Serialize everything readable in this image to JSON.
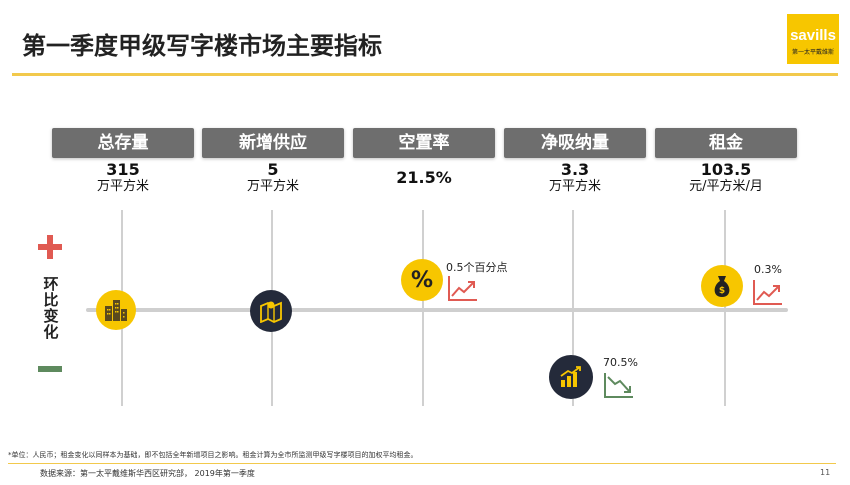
{
  "title": "第一季度甲级写字楼市场主要指标",
  "logo": {
    "brand": "savills",
    "sub": "第一太平戴维斯"
  },
  "metrics": [
    {
      "label": "总存量",
      "value": "315",
      "unit": "万平方米"
    },
    {
      "label": "新增供应",
      "value": "5",
      "unit": "万平方米"
    },
    {
      "label": "空置率",
      "value": "21.5%",
      "unit": ""
    },
    {
      "label": "净吸纳量",
      "value": "3.3",
      "unit": "万平方米"
    },
    {
      "label": "租金",
      "value": "103.5",
      "unit": "元/平方米/月"
    }
  ],
  "side_label": "环比变化",
  "changes": {
    "vacancy": "0.5个百分点",
    "absorption": "70.5%",
    "rent": "0.3%"
  },
  "vacancy_symbol": "%",
  "icons": {
    "stock": "buildings-icon",
    "supply": "blueprint-icon",
    "vacancy": "percent-icon",
    "absorption": "bar-chart-up-icon",
    "rent": "money-bag-icon",
    "trend_up": "trend-up-icon",
    "trend_down": "trend-down-icon"
  },
  "colors": {
    "accent": "#f7c600",
    "dark": "#242a3a",
    "up": "#e05a52",
    "down": "#5e8a5e"
  },
  "footnote": "*单位：人民币；租金变化以同样本为基础，即不包括全年新增项目之影响。租金计算为全市所监测甲级写字楼项目的加权平均租金。",
  "source": "数据来源：第一太平戴维斯华西区研究部， 2019年第一季度",
  "page_number": "11"
}
